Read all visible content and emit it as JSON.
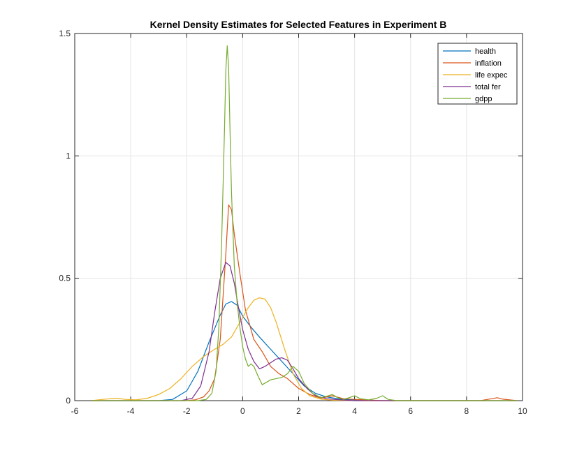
{
  "chart_data": {
    "type": "line",
    "title": "Kernel Density Estimates for Selected Features in Experiment B",
    "xlim": [
      -6,
      10
    ],
    "ylim": [
      0,
      1.5
    ],
    "xticks": [
      -6,
      -4,
      -2,
      0,
      2,
      4,
      6,
      8,
      10
    ],
    "xtick_labels": [
      "-6",
      "-4",
      "-2",
      "0",
      "2",
      "4",
      "6",
      "8",
      "10"
    ],
    "yticks": [
      0,
      0.5,
      1,
      1.5
    ],
    "ytick_labels": [
      "0",
      "0.5",
      "1",
      "1.5"
    ],
    "grid": true,
    "legend_position": "top-right",
    "series": [
      {
        "name": "health",
        "color": "#0072BD",
        "x": [
          -5.4,
          -3.0,
          -2.5,
          -2.0,
          -1.6,
          -1.2,
          -0.8,
          -0.6,
          -0.4,
          -0.2,
          0.0,
          0.3,
          0.6,
          1.0,
          1.4,
          1.8,
          2.2,
          2.6,
          3.0,
          3.5,
          4.0,
          5.0,
          6.5,
          8.0,
          9.8
        ],
        "y": [
          0.0,
          0.0,
          0.005,
          0.04,
          0.12,
          0.24,
          0.35,
          0.395,
          0.405,
          0.39,
          0.345,
          0.3,
          0.26,
          0.21,
          0.16,
          0.11,
          0.06,
          0.03,
          0.015,
          0.006,
          0.003,
          0.0,
          0.0,
          0.0,
          0.0
        ]
      },
      {
        "name": "inflation",
        "color": "#D95319",
        "x": [
          -5.4,
          -2.0,
          -1.7,
          -1.4,
          -1.2,
          -1.0,
          -0.8,
          -0.6,
          -0.5,
          -0.4,
          -0.3,
          -0.1,
          0.1,
          0.4,
          0.7,
          1.0,
          1.3,
          1.6,
          2.0,
          2.4,
          2.8,
          3.2,
          3.6,
          4.0,
          5.0,
          8.5,
          8.9,
          9.1,
          9.3,
          9.8
        ],
        "y": [
          0.0,
          0.0,
          0.003,
          0.015,
          0.04,
          0.09,
          0.25,
          0.6,
          0.8,
          0.78,
          0.68,
          0.52,
          0.37,
          0.25,
          0.2,
          0.14,
          0.11,
          0.09,
          0.05,
          0.025,
          0.01,
          0.02,
          0.008,
          0.005,
          0.0,
          0.0,
          0.008,
          0.012,
          0.006,
          0.0
        ]
      },
      {
        "name": "life expec",
        "color": "#EDB120",
        "x": [
          -5.4,
          -5.0,
          -4.5,
          -4.2,
          -3.8,
          -3.4,
          -3.0,
          -2.6,
          -2.2,
          -1.8,
          -1.4,
          -1.0,
          -0.7,
          -0.4,
          -0.2,
          0.0,
          0.2,
          0.4,
          0.6,
          0.8,
          1.0,
          1.2,
          1.5,
          1.8,
          2.1,
          2.4,
          2.8,
          3.2,
          4.0,
          9.8
        ],
        "y": [
          0.0,
          0.005,
          0.01,
          0.005,
          0.003,
          0.01,
          0.025,
          0.05,
          0.09,
          0.14,
          0.18,
          0.21,
          0.23,
          0.26,
          0.3,
          0.34,
          0.38,
          0.41,
          0.42,
          0.415,
          0.38,
          0.32,
          0.21,
          0.11,
          0.05,
          0.02,
          0.006,
          0.002,
          0.0,
          0.0
        ]
      },
      {
        "name": "total fer",
        "color": "#7E2F8E",
        "x": [
          -5.4,
          -2.2,
          -1.8,
          -1.5,
          -1.2,
          -1.0,
          -0.8,
          -0.6,
          -0.45,
          -0.3,
          -0.15,
          0.0,
          0.2,
          0.4,
          0.6,
          0.8,
          1.0,
          1.2,
          1.4,
          1.6,
          1.8,
          2.0,
          2.3,
          2.6,
          3.0,
          3.4,
          4.0,
          9.8
        ],
        "y": [
          0.0,
          0.0,
          0.01,
          0.06,
          0.2,
          0.36,
          0.5,
          0.565,
          0.55,
          0.48,
          0.38,
          0.29,
          0.21,
          0.16,
          0.13,
          0.14,
          0.155,
          0.17,
          0.175,
          0.165,
          0.13,
          0.09,
          0.05,
          0.02,
          0.008,
          0.004,
          0.0,
          0.0
        ]
      },
      {
        "name": "gdpp",
        "color": "#77AC30",
        "x": [
          -5.4,
          -1.6,
          -1.3,
          -1.1,
          -0.95,
          -0.85,
          -0.75,
          -0.65,
          -0.6,
          -0.55,
          -0.5,
          -0.45,
          -0.4,
          -0.3,
          -0.2,
          -0.1,
          0.0,
          0.1,
          0.2,
          0.3,
          0.4,
          0.55,
          0.7,
          0.85,
          1.0,
          1.2,
          1.4,
          1.6,
          1.8,
          2.0,
          2.2,
          2.5,
          2.8,
          3.0,
          3.2,
          3.4,
          3.6,
          3.8,
          4.0,
          4.2,
          4.5,
          4.8,
          5.0,
          5.2,
          5.5,
          9.8
        ],
        "y": [
          0.0,
          0.0,
          0.005,
          0.03,
          0.12,
          0.3,
          0.65,
          1.1,
          1.35,
          1.45,
          1.36,
          1.1,
          0.85,
          0.55,
          0.4,
          0.3,
          0.22,
          0.17,
          0.14,
          0.15,
          0.14,
          0.1,
          0.065,
          0.075,
          0.085,
          0.09,
          0.095,
          0.11,
          0.14,
          0.12,
          0.07,
          0.03,
          0.012,
          0.018,
          0.025,
          0.012,
          0.005,
          0.012,
          0.02,
          0.008,
          0.003,
          0.01,
          0.02,
          0.005,
          0.0,
          0.0
        ]
      }
    ]
  }
}
